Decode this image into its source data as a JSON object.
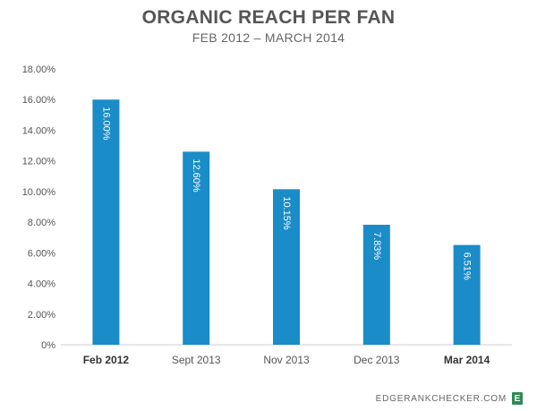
{
  "chart_data": {
    "type": "bar",
    "title": "ORGANIC REACH PER FAN",
    "subtitle": "FEB 2012 – MARCH 2014",
    "categories": [
      "Feb 2012",
      "Sept 2013",
      "Nov 2013",
      "Dec 2013",
      "Mar 2014"
    ],
    "bold_categories": [
      "Feb 2012",
      "Mar 2014"
    ],
    "values": [
      16.0,
      12.6,
      10.15,
      7.83,
      6.51
    ],
    "data_labels": [
      "16.00%",
      "12.60%",
      "10.15%",
      "7.83%",
      "6.51%"
    ],
    "ylim": [
      0,
      18
    ],
    "yticks": [
      0,
      2,
      4,
      6,
      8,
      10,
      12,
      14,
      16,
      18
    ],
    "ytick_labels": [
      "0%",
      "2.00%",
      "4.00%",
      "6.00%",
      "8.00%",
      "10.00%",
      "12.00%",
      "14.00%",
      "16.00%",
      "18.00%"
    ],
    "xlabel": "",
    "ylabel": "",
    "grid": false,
    "bar_color": "#1a8cc8"
  },
  "footer": {
    "source": "EDGERANKCHECKER.COM",
    "badge": "E"
  }
}
